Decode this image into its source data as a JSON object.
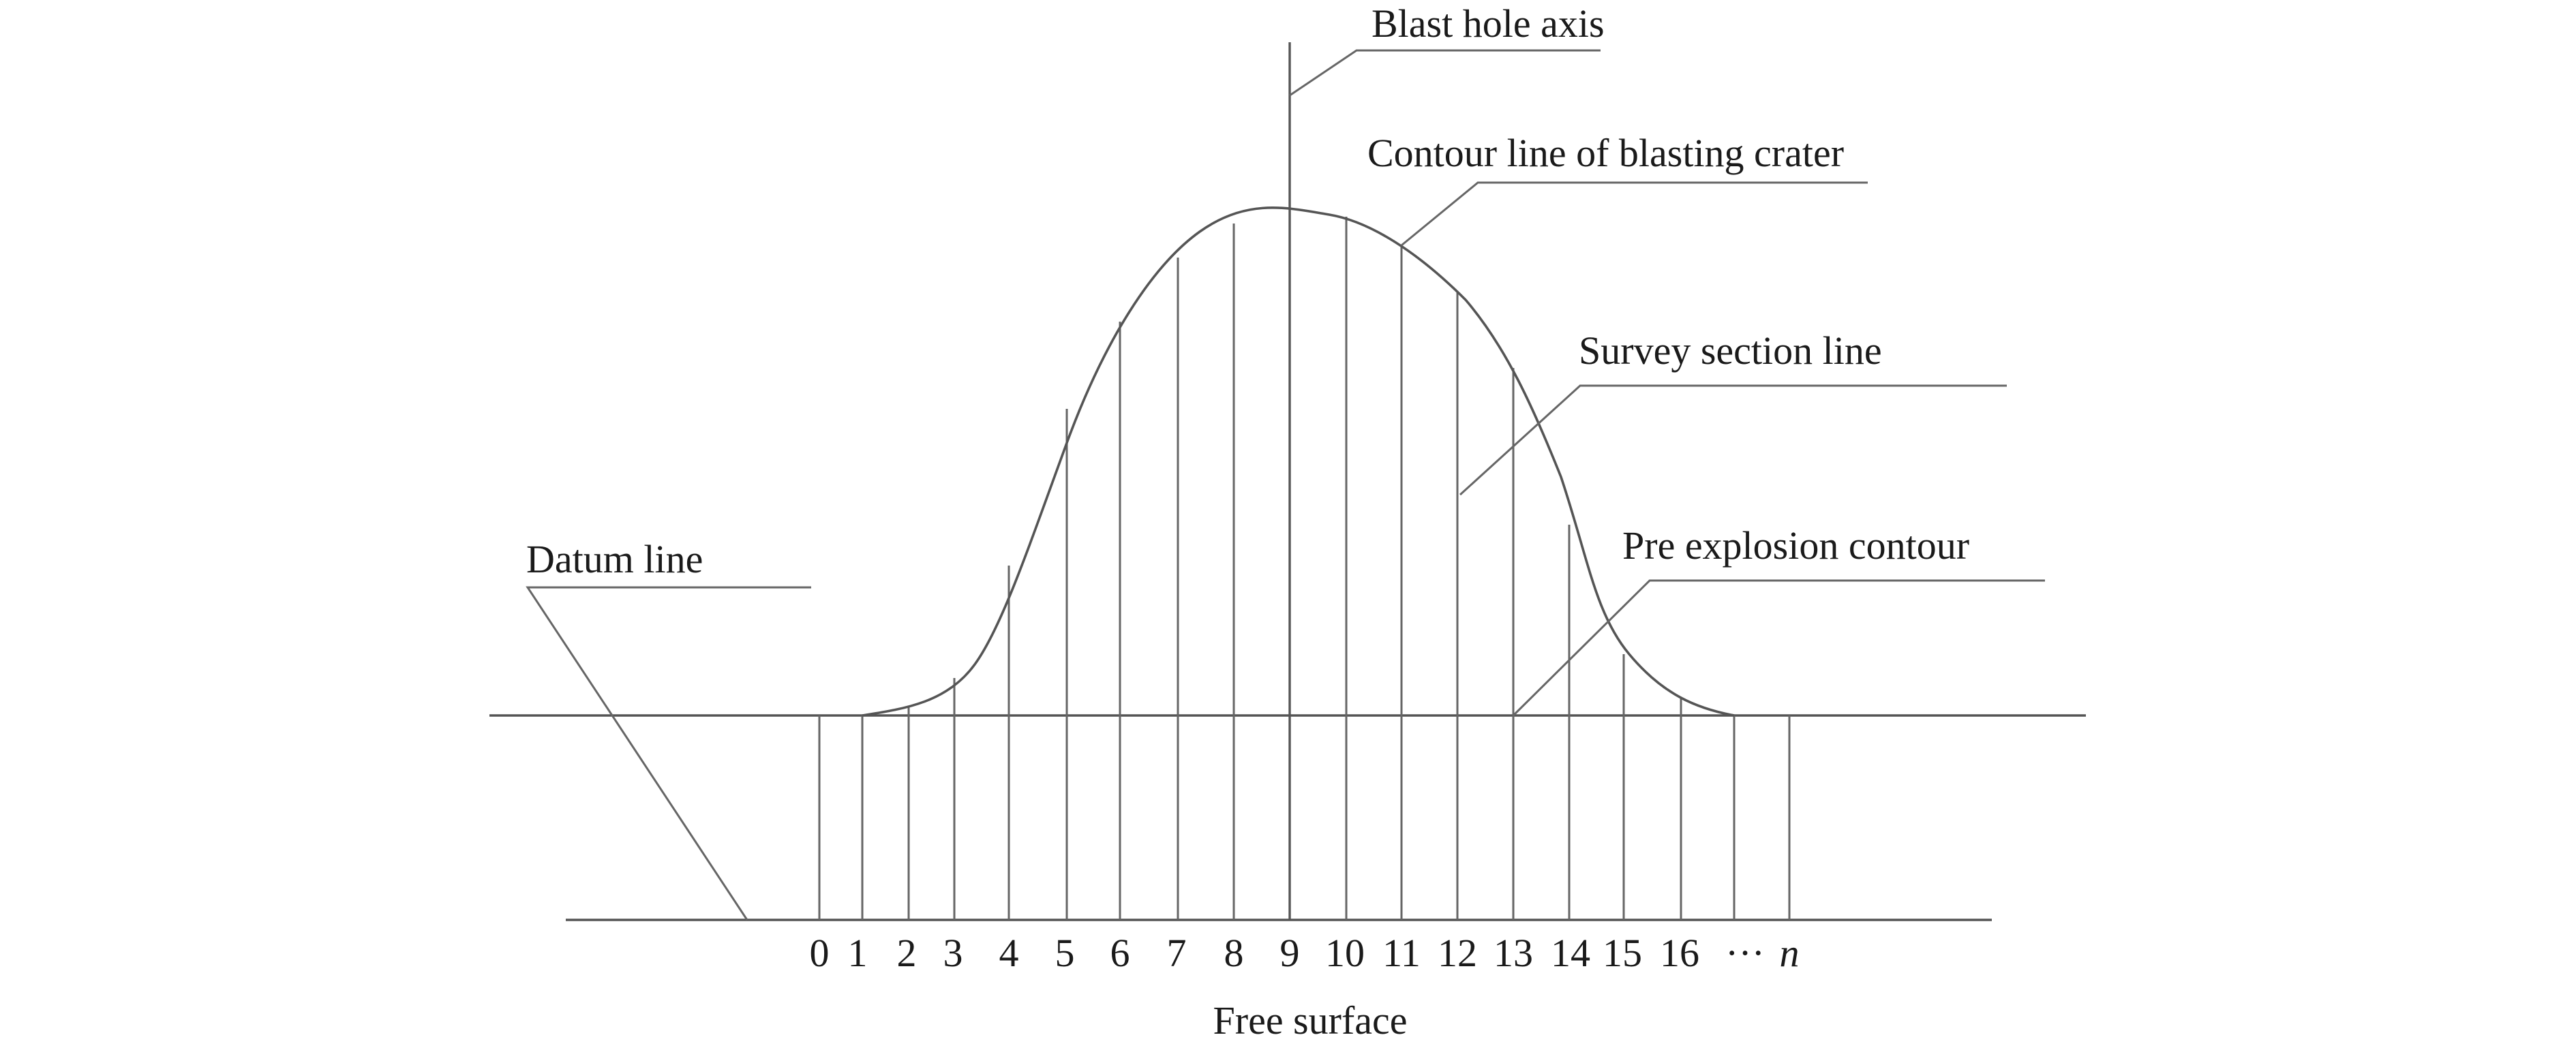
{
  "labels": {
    "blast_hole_axis": "Blast hole axis",
    "contour_line": "Contour line of blasting crater",
    "survey_section_line": "Survey section line",
    "pre_explosion_contour": "Pre explosion contour",
    "datum_line": "Datum line",
    "free_surface": "Free surface"
  },
  "section_labels": [
    "0",
    "1",
    "2",
    "3",
    "4",
    "5",
    "6",
    "7",
    "8",
    "9",
    "10",
    "11",
    "12",
    "13",
    "14",
    "15",
    "16",
    "···",
    "n"
  ]
}
